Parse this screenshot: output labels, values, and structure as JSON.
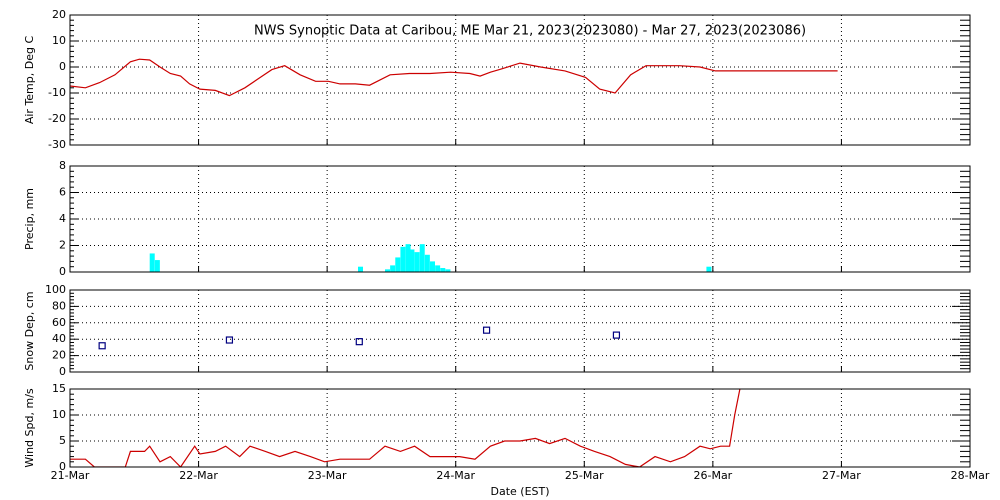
{
  "chart_data": [
    {
      "type": "line",
      "title": "NWS Synoptic Data at Caribou, ME   Mar 21, 2023(2023080) - Mar 27, 2023(2023086)",
      "y_label": "Air Temp, Deg C",
      "color": "#cc0000",
      "x": [
        21.0,
        21.12,
        21.23,
        21.35,
        21.47,
        21.54,
        21.62,
        21.7,
        21.78,
        21.86,
        21.93,
        22.01,
        22.13,
        22.24,
        22.36,
        22.48,
        22.57,
        22.67,
        22.79,
        22.91,
        23.01,
        23.1,
        23.22,
        23.33,
        23.49,
        23.64,
        23.8,
        23.96,
        24.11,
        24.19,
        24.27,
        24.34,
        24.5,
        24.66,
        24.85,
        25.01,
        25.12,
        25.24,
        25.36,
        25.48,
        25.59,
        25.74,
        25.9,
        26.02,
        26.97
      ],
      "values": [
        -7.3,
        -8,
        -6,
        -3,
        2,
        3,
        2.7,
        0,
        -2.5,
        -3.5,
        -6.5,
        -8.5,
        -9,
        -11,
        -8,
        -4,
        -1,
        0.5,
        -3,
        -5.5,
        -5.5,
        -6.5,
        -6.5,
        -7,
        -3,
        -2.5,
        -2.5,
        -2,
        -2.5,
        -3.5,
        -2,
        -1,
        1.5,
        0,
        -1.5,
        -4,
        -8.5,
        -10,
        -3,
        0.5,
        0.5,
        0.5,
        0,
        -1.5,
        -1.5
      ],
      "xlim": [
        21,
        28
      ],
      "ylim": [
        -30,
        20
      ],
      "yticks": [
        -30,
        -20,
        -10,
        0,
        10,
        20
      ],
      "grid": true
    },
    {
      "type": "bar",
      "y_label": "Precip, mm",
      "color": "#00ffff",
      "x": [
        21.62,
        21.66,
        23.24,
        23.45,
        23.49,
        23.53,
        23.57,
        23.61,
        23.64,
        23.68,
        23.72,
        23.76,
        23.8,
        23.84,
        23.88,
        23.92,
        25.95
      ],
      "values": [
        1.4,
        0.9,
        0.4,
        0.2,
        0.5,
        1.1,
        1.9,
        2.1,
        1.7,
        1.5,
        2.1,
        1.3,
        0.8,
        0.5,
        0.3,
        0.2,
        0.4
      ],
      "xlim": [
        21,
        28
      ],
      "ylim": [
        0,
        8
      ],
      "yticks": [
        0,
        2,
        4,
        6,
        8
      ],
      "grid": true
    },
    {
      "type": "scatter",
      "y_label": "Snow Dep, cm",
      "color": "#000080",
      "x": [
        21.25,
        22.24,
        23.25,
        24.24,
        25.25
      ],
      "values": [
        32,
        39,
        37,
        51,
        45
      ],
      "xlim": [
        21,
        28
      ],
      "ylim": [
        0,
        100
      ],
      "yticks": [
        0,
        20,
        40,
        60,
        80,
        100
      ],
      "grid": true
    },
    {
      "type": "line",
      "y_label": "Wind Spd, m/s",
      "x_label": "Date (EST)",
      "color": "#cc0000",
      "x": [
        21.0,
        21.12,
        21.19,
        21.31,
        21.43,
        21.47,
        21.58,
        21.62,
        21.7,
        21.78,
        21.86,
        21.97,
        22.01,
        22.13,
        22.21,
        22.32,
        22.4,
        22.52,
        22.63,
        22.75,
        22.87,
        22.98,
        23.1,
        23.22,
        23.33,
        23.45,
        23.57,
        23.68,
        23.8,
        23.92,
        24.03,
        24.15,
        24.27,
        24.38,
        24.5,
        24.62,
        24.73,
        24.85,
        24.97,
        25.08,
        25.2,
        25.32,
        25.43,
        25.55,
        25.67,
        25.78,
        25.9,
        25.98,
        26.06,
        26.13,
        26.17,
        26.21
      ],
      "values": [
        1.5,
        1.5,
        0,
        0,
        0,
        3,
        3,
        4,
        1,
        2,
        0,
        4,
        2.5,
        3,
        4,
        2,
        4,
        3,
        2,
        3,
        2,
        1,
        1.5,
        1.5,
        1.5,
        4,
        3,
        4,
        2,
        2,
        2,
        1.5,
        4,
        5,
        5,
        5.5,
        4.5,
        5.5,
        4,
        3,
        2,
        0.5,
        0,
        2,
        1,
        2,
        4,
        3.5,
        4,
        4,
        10,
        15
      ],
      "xlim": [
        21,
        28
      ],
      "ylim": [
        0,
        15
      ],
      "yticks": [
        0,
        5,
        10,
        15
      ],
      "grid": true,
      "xticks": [
        {
          "value": 21,
          "label": "21-Mar"
        },
        {
          "value": 22,
          "label": "22-Mar"
        },
        {
          "value": 23,
          "label": "23-Mar"
        },
        {
          "value": 24,
          "label": "24-Mar"
        },
        {
          "value": 25,
          "label": "25-Mar"
        },
        {
          "value": 26,
          "label": "26-Mar"
        },
        {
          "value": 27,
          "label": "27-Mar"
        },
        {
          "value": 28,
          "label": "28-Mar"
        }
      ]
    }
  ]
}
